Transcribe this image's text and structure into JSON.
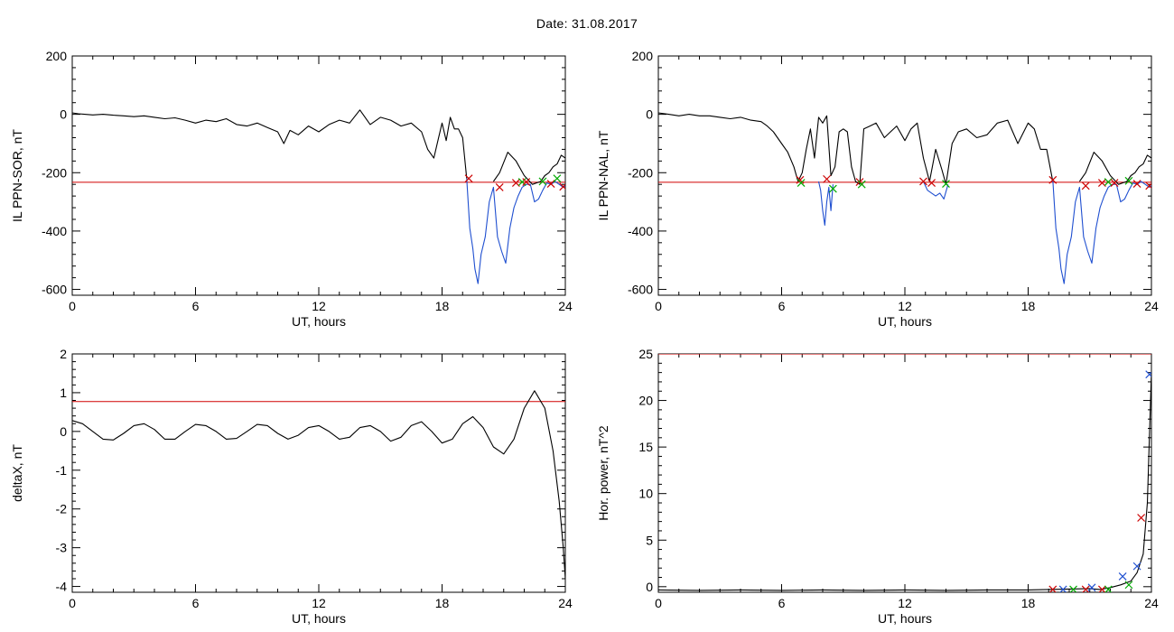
{
  "page": {
    "date_label": "Date:  31.08.2017"
  },
  "chart_data": [
    {
      "type": "line",
      "id": "ppn-sor",
      "xlabel": "UT, hours",
      "ylabel": "IL PPN-SOR, nT",
      "xlim": [
        0,
        24
      ],
      "ylim": [
        -620,
        200
      ],
      "xticks": [
        0,
        6,
        12,
        18,
        24
      ],
      "yticks": [
        -600,
        -400,
        -200,
        0,
        200
      ],
      "threshold": -233,
      "series": [
        {
          "color": "#000000",
          "x": [
            0,
            0.3,
            0.6,
            1,
            1.5,
            2,
            2.5,
            3,
            3.5,
            4,
            4.5,
            5,
            5.5,
            6,
            6.5,
            7,
            7.5,
            8,
            8.5,
            9,
            9.5,
            10,
            10.3,
            10.6,
            11,
            11.5,
            12,
            12.5,
            13,
            13.5,
            14,
            14.5,
            15,
            15.5,
            16,
            16.5,
            17,
            17.3,
            17.6,
            17.8,
            18,
            18.2,
            18.4,
            18.6,
            18.8,
            19,
            19.2
          ],
          "y": [
            5,
            2,
            0,
            -2,
            0,
            -3,
            -5,
            -8,
            -5,
            -10,
            -15,
            -12,
            -20,
            -30,
            -20,
            -25,
            -15,
            -35,
            -40,
            -30,
            -45,
            -60,
            -100,
            -55,
            -70,
            -40,
            -60,
            -35,
            -20,
            -30,
            15,
            -35,
            -10,
            -20,
            -40,
            -30,
            -60,
            -120,
            -150,
            -90,
            -30,
            -90,
            -10,
            -50,
            -50,
            -80,
            -220
          ]
        },
        {
          "color": "#1f4fd0",
          "x": [
            19.2,
            19.35,
            19.5,
            19.6,
            19.75,
            19.9,
            20.1,
            20.3,
            20.5,
            20.7,
            20.9,
            21.1,
            21.3,
            21.5,
            21.7,
            21.9,
            22.1,
            22.3,
            22.5,
            22.7,
            22.9,
            23.1,
            23.3,
            23.5,
            23.7,
            23.9,
            24
          ],
          "y": [
            -220,
            -390,
            -460,
            -530,
            -580,
            -480,
            -420,
            -300,
            -250,
            -420,
            -470,
            -510,
            -390,
            -320,
            -280,
            -250,
            -240,
            -240,
            -300,
            -290,
            -260,
            -235,
            -240,
            -230,
            -240,
            -250,
            -245
          ]
        },
        {
          "color": "#000000",
          "x": [
            20.5,
            20.8,
            21.2,
            21.6,
            22,
            22.4,
            22.8,
            23,
            23.2,
            23.4,
            23.6,
            23.8,
            24
          ],
          "y": [
            -230,
            -200,
            -130,
            -160,
            -210,
            -240,
            -230,
            -210,
            -200,
            -180,
            -170,
            -140,
            -150
          ]
        }
      ],
      "markers": [
        {
          "x": 19.3,
          "y": -220,
          "color": "#cc0000"
        },
        {
          "x": 20.8,
          "y": -250,
          "color": "#cc0000"
        },
        {
          "x": 21.6,
          "y": -235,
          "color": "#cc0000"
        },
        {
          "x": 21.9,
          "y": -232,
          "color": "#00aa00"
        },
        {
          "x": 22.1,
          "y": -232,
          "color": "#cc0000"
        },
        {
          "x": 22.9,
          "y": -230,
          "color": "#00aa00"
        },
        {
          "x": 23.3,
          "y": -238,
          "color": "#cc0000"
        },
        {
          "x": 23.6,
          "y": -220,
          "color": "#00aa00"
        },
        {
          "x": 23.9,
          "y": -248,
          "color": "#cc0000"
        }
      ]
    },
    {
      "type": "line",
      "id": "ppn-nal",
      "xlabel": "UT, hours",
      "ylabel": "IL PPN-NAL, nT",
      "xlim": [
        0,
        24
      ],
      "ylim": [
        -620,
        200
      ],
      "xticks": [
        0,
        6,
        12,
        18,
        24
      ],
      "yticks": [
        -600,
        -400,
        -200,
        0,
        200
      ],
      "threshold": -233,
      "series": [
        {
          "color": "#000000",
          "x": [
            0,
            0.5,
            1,
            1.5,
            2,
            2.5,
            3,
            3.5,
            4,
            4.5,
            5,
            5.3,
            5.6,
            6,
            6.3,
            6.6,
            6.8,
            7,
            7.2,
            7.4,
            7.6,
            7.8,
            8,
            8.2,
            8.4,
            8.6,
            8.8,
            9,
            9.2,
            9.4,
            9.6,
            9.8,
            10,
            10.3,
            10.6,
            11,
            11.3,
            11.6,
            12,
            12.3,
            12.6,
            12.9,
            13.2,
            13.5,
            13.8,
            14,
            14.3,
            14.6,
            15,
            15.5,
            16,
            16.5,
            17,
            17.5,
            18,
            18.3,
            18.6,
            18.9,
            19.2
          ],
          "y": [
            5,
            0,
            -5,
            0,
            -5,
            -5,
            -10,
            -15,
            -10,
            -20,
            -25,
            -40,
            -60,
            -100,
            -130,
            -180,
            -230,
            -200,
            -120,
            -50,
            -150,
            -10,
            -30,
            -5,
            -210,
            -180,
            -60,
            -50,
            -60,
            -180,
            -230,
            -240,
            -50,
            -40,
            -30,
            -80,
            -60,
            -40,
            -90,
            -50,
            -30,
            -150,
            -230,
            -120,
            -190,
            -240,
            -100,
            -60,
            -50,
            -80,
            -70,
            -30,
            -20,
            -100,
            -30,
            -50,
            -120,
            -120,
            -230
          ]
        },
        {
          "color": "#1f4fd0",
          "x": [
            7.8,
            7.9,
            8,
            8.1,
            8.2,
            8.3,
            8.4,
            8.5
          ],
          "y": [
            -230,
            -260,
            -330,
            -380,
            -300,
            -250,
            -330,
            -240
          ]
        },
        {
          "color": "#1f4fd0",
          "x": [
            12.9,
            13.1,
            13.3,
            13.5,
            13.7,
            13.9,
            14.1
          ],
          "y": [
            -230,
            -260,
            -270,
            -280,
            -270,
            -290,
            -240
          ]
        },
        {
          "color": "#1f4fd0",
          "x": [
            19.2,
            19.35,
            19.5,
            19.6,
            19.75,
            19.9,
            20.1,
            20.3,
            20.5,
            20.7,
            20.9,
            21.1,
            21.3,
            21.5,
            21.7,
            21.9,
            22.1,
            22.3,
            22.5,
            22.7,
            22.9,
            23.1,
            23.3,
            23.5,
            23.7,
            23.9,
            24
          ],
          "y": [
            -225,
            -390,
            -460,
            -530,
            -580,
            -480,
            -420,
            -300,
            -250,
            -420,
            -470,
            -510,
            -390,
            -320,
            -280,
            -250,
            -240,
            -240,
            -300,
            -290,
            -260,
            -235,
            -240,
            -230,
            -240,
            -250,
            -245
          ]
        },
        {
          "color": "#000000",
          "x": [
            20.5,
            20.8,
            21.2,
            21.6,
            22,
            22.4,
            22.8,
            23,
            23.2,
            23.4,
            23.6,
            23.8,
            24
          ],
          "y": [
            -230,
            -200,
            -130,
            -160,
            -210,
            -240,
            -230,
            -210,
            -200,
            -180,
            -170,
            -140,
            -150
          ]
        }
      ],
      "markers": [
        {
          "x": 6.9,
          "y": -225,
          "color": "#cc0000"
        },
        {
          "x": 6.95,
          "y": -235,
          "color": "#00aa00"
        },
        {
          "x": 8.2,
          "y": -222,
          "color": "#cc0000"
        },
        {
          "x": 8.5,
          "y": -255,
          "color": "#00aa00"
        },
        {
          "x": 9.8,
          "y": -232,
          "color": "#cc0000"
        },
        {
          "x": 9.9,
          "y": -240,
          "color": "#00aa00"
        },
        {
          "x": 12.9,
          "y": -230,
          "color": "#cc0000"
        },
        {
          "x": 13.3,
          "y": -235,
          "color": "#cc0000"
        },
        {
          "x": 14.0,
          "y": -238,
          "color": "#00aa00"
        },
        {
          "x": 19.2,
          "y": -225,
          "color": "#cc0000"
        },
        {
          "x": 20.8,
          "y": -245,
          "color": "#cc0000"
        },
        {
          "x": 21.6,
          "y": -235,
          "color": "#cc0000"
        },
        {
          "x": 21.9,
          "y": -232,
          "color": "#00aa00"
        },
        {
          "x": 22.2,
          "y": -235,
          "color": "#cc0000"
        },
        {
          "x": 22.9,
          "y": -228,
          "color": "#00aa00"
        },
        {
          "x": 23.3,
          "y": -238,
          "color": "#cc0000"
        },
        {
          "x": 23.9,
          "y": -245,
          "color": "#cc0000"
        }
      ]
    },
    {
      "type": "line",
      "id": "deltax",
      "xlabel": "UT, hours",
      "ylabel": "deltaX, nT",
      "xlim": [
        0,
        24
      ],
      "ylim": [
        -4.15,
        2
      ],
      "xticks": [
        0,
        6,
        12,
        18,
        24
      ],
      "yticks": [
        -4,
        -3,
        -2,
        -1,
        0,
        1,
        2
      ],
      "threshold": 0.77,
      "series": [
        {
          "color": "#000000",
          "x": [
            0,
            0.5,
            1,
            1.5,
            2,
            2.5,
            3,
            3.5,
            4,
            4.5,
            5,
            5.5,
            6,
            6.5,
            7,
            7.5,
            8,
            8.5,
            9,
            9.5,
            10,
            10.5,
            11,
            11.5,
            12,
            12.5,
            13,
            13.5,
            14,
            14.5,
            15,
            15.5,
            16,
            16.5,
            17,
            17.5,
            18,
            18.5,
            19,
            19.5,
            20,
            20.5,
            21,
            21.5,
            22,
            22.5,
            23,
            23.4,
            23.7,
            23.9,
            24
          ],
          "y": [
            0.28,
            0.2,
            0.0,
            -0.2,
            -0.22,
            -0.05,
            0.15,
            0.2,
            0.05,
            -0.2,
            -0.2,
            0.0,
            0.18,
            0.15,
            0.0,
            -0.2,
            -0.18,
            0.0,
            0.18,
            0.15,
            -0.05,
            -0.2,
            -0.1,
            0.1,
            0.15,
            0.0,
            -0.2,
            -0.15,
            0.1,
            0.15,
            0.0,
            -0.25,
            -0.15,
            0.15,
            0.25,
            0.0,
            -0.3,
            -0.2,
            0.2,
            0.38,
            0.1,
            -0.4,
            -0.58,
            -0.2,
            0.6,
            1.05,
            0.6,
            -0.5,
            -1.8,
            -3.0,
            -3.8
          ]
        }
      ],
      "markers": []
    },
    {
      "type": "line",
      "id": "hor-power",
      "xlabel": "UT, hours",
      "ylabel": "Hor. power, nT^2",
      "xlim": [
        0,
        24
      ],
      "ylim": [
        -0.6,
        25
      ],
      "xticks": [
        0,
        6,
        12,
        18,
        24
      ],
      "yticks": [
        0,
        5,
        10,
        15,
        20,
        25
      ],
      "threshold": 25,
      "series": [
        {
          "color": "#000000",
          "x": [
            0,
            2,
            4,
            6,
            8,
            10,
            12,
            14,
            16,
            18,
            19,
            20,
            21,
            21.5,
            22,
            22.5,
            23,
            23.3,
            23.6,
            23.8,
            24
          ],
          "y": [
            -0.35,
            -0.4,
            -0.35,
            -0.4,
            -0.35,
            -0.4,
            -0.35,
            -0.4,
            -0.35,
            -0.35,
            -0.3,
            -0.25,
            -0.2,
            -0.3,
            -0.1,
            0.2,
            0.6,
            1.5,
            3.5,
            9,
            23
          ]
        }
      ],
      "markers": [
        {
          "x": 19.2,
          "y": -0.3,
          "color": "#cc0000"
        },
        {
          "x": 19.7,
          "y": -0.3,
          "color": "#1f4fd0"
        },
        {
          "x": 20.2,
          "y": -0.3,
          "color": "#00aa00"
        },
        {
          "x": 20.8,
          "y": -0.3,
          "color": "#cc0000"
        },
        {
          "x": 21.1,
          "y": -0.1,
          "color": "#1f4fd0"
        },
        {
          "x": 21.6,
          "y": -0.3,
          "color": "#cc0000"
        },
        {
          "x": 21.9,
          "y": -0.3,
          "color": "#00aa00"
        },
        {
          "x": 22.6,
          "y": 1.1,
          "color": "#1f4fd0"
        },
        {
          "x": 22.9,
          "y": 0.2,
          "color": "#00aa00"
        },
        {
          "x": 23.3,
          "y": 2.2,
          "color": "#1f4fd0"
        },
        {
          "x": 23.5,
          "y": 7.4,
          "color": "#cc0000"
        },
        {
          "x": 23.9,
          "y": 22.8,
          "color": "#1f4fd0"
        }
      ]
    }
  ]
}
